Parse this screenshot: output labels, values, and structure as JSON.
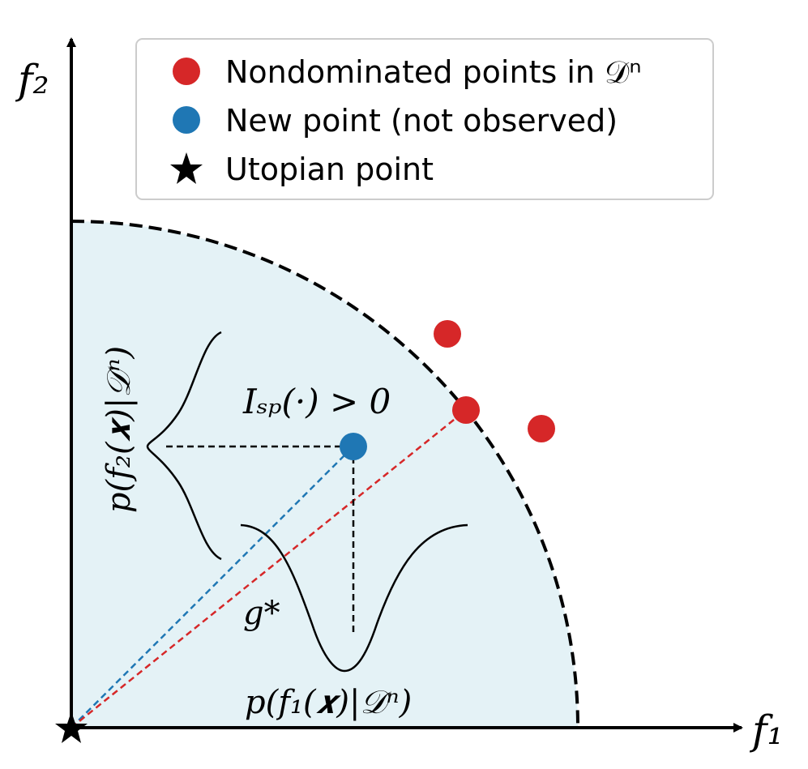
{
  "axes": {
    "x_label": "f₁",
    "y_label": "f₂"
  },
  "legend": [
    "Nondominated points in 𝒟ⁿ",
    "New point (not observed)",
    "Utopian point"
  ],
  "annotations": {
    "improvement": "𝐼ₛₚ(·) > 0",
    "g_star": "g*",
    "f1_density": "p(f₁(𝒙)|𝒟ⁿ)",
    "f2_density": "p(f₂(𝒙)|𝒟ⁿ)"
  }
}
